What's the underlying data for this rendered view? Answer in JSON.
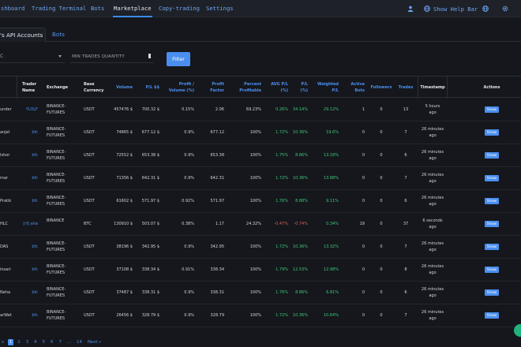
{
  "nav": {
    "items": [
      "shboard",
      "Trading Terminal",
      "Bots",
      "Marketplace",
      "Copy-trading",
      "Settings"
    ],
    "help": "Show Help Bar"
  },
  "tabs": {
    "active": "'s API Accounts",
    "bots": "Bots"
  },
  "filters": {
    "select_value": "C",
    "min_trades_label": "MIN TRADES QUANTITY",
    "filter_button": "Filter"
  },
  "table": {
    "headers": {
      "trader_name": "Trader\nName",
      "exchange": "Exchange",
      "base_currency": "Base\nCurrency",
      "volume": "Volume",
      "pl": "P/L $$",
      "profit_volume": "Profit /\nVolume (%)",
      "profit_factor": "Profit\nFactor",
      "percent_profitable": "Percent\nProfitable",
      "avg_pl": "AVG P/L\n(%)",
      "pl_pct": "P/L\n(%)",
      "weighted_pl": "Weighted\nP/L",
      "active_bots": "Active\nBots",
      "followers": "Followers",
      "trades": "Trades",
      "timestamp": "Timestamp",
      "actions": "Actions"
    },
    "show_label": "Show",
    "rows": [
      {
        "account": "under",
        "trader": "YLOLF",
        "exchange": "BINANCE-\nFUTURES",
        "currency": "USDT",
        "volume": "457476 $",
        "pl": "700.32 $",
        "profit_volume": "0.15%",
        "profit_factor": "2.06",
        "percent_profitable": "69.23%",
        "avg_pl": "0.26%",
        "avg_color": "green",
        "pl_pct": "34.14%",
        "pl_color": "green",
        "weighted_pl": "29.12%",
        "active_bots": "1",
        "followers": "0",
        "trades": "13",
        "timestamp": "5 hours\nago"
      },
      {
        "account": "anjel",
        "trader": "bfc",
        "exchange": "BINANCE-\nFUTURES",
        "currency": "USDT",
        "volume": "74865 $",
        "pl": "677.12 $",
        "profit_volume": "0.9%",
        "profit_factor": "677.12",
        "percent_profitable": "100%",
        "avg_pl": "1.72%",
        "avg_color": "green",
        "pl_pct": "10.36%",
        "pl_color": "green",
        "weighted_pl": "19.6%",
        "active_bots": "0",
        "followers": "0",
        "trades": "7",
        "timestamp": "26 minutes\nago"
      },
      {
        "account": "Ishor",
        "trader": "bfc",
        "exchange": "BINANCE-\nFUTURES",
        "currency": "USDT",
        "volume": "72552 $",
        "pl": "653.38 $",
        "profit_volume": "0.9%",
        "profit_factor": "653.38",
        "percent_profitable": "100%",
        "avg_pl": "1.75%",
        "avg_color": "green",
        "pl_pct": "8.86%",
        "pl_color": "green",
        "weighted_pl": "13.18%",
        "active_bots": "0",
        "followers": "0",
        "trades": "6",
        "timestamp": "26 minutes\nago"
      },
      {
        "account": "mar",
        "trader": "bfc",
        "exchange": "BINANCE-\nFUTURES",
        "currency": "USDT",
        "volume": "71356 $",
        "pl": "642.31 $",
        "profit_volume": "0.9%",
        "profit_factor": "642.31",
        "percent_profitable": "100%",
        "avg_pl": "1.72%",
        "avg_color": "green",
        "pl_pct": "10.36%",
        "pl_color": "green",
        "weighted_pl": "13.88%",
        "active_bots": "0",
        "followers": "0",
        "trades": "7",
        "timestamp": "26 minutes\nago"
      },
      {
        "account": "Pratik",
        "trader": "bfc",
        "exchange": "BINANCE-\nFUTURES",
        "currency": "USDT",
        "volume": "61602 $",
        "pl": "571.97 $",
        "profit_volume": "0.92%",
        "profit_factor": "571.97",
        "percent_profitable": "100%",
        "avg_pl": "1.76%",
        "avg_color": "green",
        "pl_pct": "8.88%",
        "pl_color": "green",
        "weighted_pl": "9.11%",
        "active_bots": "0",
        "followers": "0",
        "trades": "6",
        "timestamp": "26 minutes\nago"
      },
      {
        "account": "HLC",
        "trader": "[rf] ahe",
        "exchange": "BINANCE",
        "currency": "BTC",
        "volume": "130910 $",
        "pl": "503.07 $",
        "profit_volume": "0.38%",
        "profit_factor": "1.17",
        "percent_profitable": "24.32%",
        "avg_pl": "-0.47%",
        "avg_color": "red",
        "pl_pct": "-0.74%",
        "pl_color": "red",
        "weighted_pl": "0.34%",
        "active_bots": "19",
        "followers": "0",
        "trades": "37",
        "timestamp": "6 seconds\nago"
      },
      {
        "account": "DAS",
        "trader": "bfc",
        "exchange": "BINANCE-\nFUTURES",
        "currency": "USDT",
        "volume": "38196 $",
        "pl": "342.95 $",
        "profit_volume": "0.9%",
        "profit_factor": "342.95",
        "percent_profitable": "100%",
        "avg_pl": "1.72%",
        "avg_color": "green",
        "pl_pct": "10.36%",
        "pl_color": "green",
        "weighted_pl": "13.32%",
        "active_bots": "0",
        "followers": "0",
        "trades": "7",
        "timestamp": "26 minutes\nago"
      },
      {
        "account": "insari",
        "trader": "bfc",
        "exchange": "BINANCE-\nFUTURES",
        "currency": "USDT",
        "volume": "37108 $",
        "pl": "338.34 $",
        "profit_volume": "0.91%",
        "profit_factor": "338.34",
        "percent_profitable": "100%",
        "avg_pl": "1.79%",
        "avg_color": "green",
        "pl_pct": "12.53%",
        "pl_color": "green",
        "weighted_pl": "12.98%",
        "active_bots": "0",
        "followers": "0",
        "trades": "8",
        "timestamp": "26 minutes\nago"
      },
      {
        "account": "Neha",
        "trader": "bfc",
        "exchange": "BINANCE-\nFUTURES",
        "currency": "USDT",
        "volume": "37487 $",
        "pl": "338.31 $",
        "profit_volume": "0.9%",
        "profit_factor": "338.31",
        "percent_profitable": "100%",
        "avg_pl": "1.76%",
        "avg_color": "green",
        "pl_pct": "8.86%",
        "pl_color": "green",
        "weighted_pl": "6.81%",
        "active_bots": "0",
        "followers": "0",
        "trades": "6",
        "timestamp": "26 minutes\nago"
      },
      {
        "account": "arWet",
        "trader": "bfc",
        "exchange": "BINANCE-\nFUTURES",
        "currency": "USDT",
        "volume": "26456 $",
        "pl": "328.79 $",
        "profit_volume": "0.9%",
        "profit_factor": "328.79",
        "percent_profitable": "100%",
        "avg_pl": "1.72%",
        "avg_color": "green",
        "pl_pct": "10.36%",
        "pl_color": "green",
        "weighted_pl": "10.64%",
        "active_bots": "0",
        "followers": "0",
        "trades": "7",
        "timestamp": "26 minutes\nago"
      }
    ]
  },
  "pagination": {
    "prev": "s",
    "pages": [
      "1",
      "2",
      "3",
      "4",
      "5",
      "6",
      "7",
      "...",
      "14"
    ],
    "next": "Next »"
  },
  "colors": {
    "accent": "#4a8ff0",
    "background": "#15171c",
    "positive": "#3ec97a",
    "negative": "#e05c5c"
  }
}
